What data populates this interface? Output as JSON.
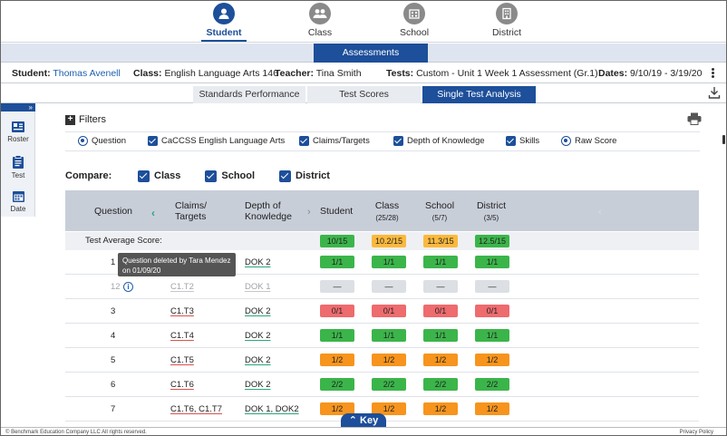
{
  "top_nav": {
    "items": [
      {
        "label": "Student",
        "icon": "person-icon",
        "active": true
      },
      {
        "label": "Class",
        "icon": "group-icon",
        "active": false
      },
      {
        "label": "School",
        "icon": "school-icon",
        "active": false
      },
      {
        "label": "District",
        "icon": "district-icon",
        "active": false
      }
    ]
  },
  "band": {
    "title": "Assessments"
  },
  "info": {
    "student_label": "Student:",
    "student_value": "Thomas Avenell",
    "class_label": "Class:",
    "class_value": "English Language Arts 146",
    "teacher_label": "Teacher:",
    "teacher_value": "Tina Smith",
    "tests_label": "Tests:",
    "tests_value": "Custom - Unit 1 Week 1 Assessment (Gr.1)",
    "dates_label": "Dates:",
    "dates_value": "9/10/19 - 3/19/20"
  },
  "subtabs": [
    {
      "label": "Standards Performance",
      "active": false
    },
    {
      "label": "Test Scores",
      "active": false
    },
    {
      "label": "Single Test Analysis",
      "active": true
    }
  ],
  "rail": {
    "expand": "»",
    "items": [
      {
        "label": "Roster",
        "icon": "roster-icon"
      },
      {
        "label": "Test",
        "icon": "clipboard-icon"
      },
      {
        "label": "Date",
        "icon": "calendar-icon"
      }
    ]
  },
  "filters": {
    "title": "Filters",
    "options": [
      {
        "label": "Question",
        "kind": "radio"
      },
      {
        "label": "CaCCSS English Language Arts",
        "kind": "checkbox"
      },
      {
        "label": "Claims/Targets",
        "kind": "checkbox"
      },
      {
        "label": "Depth of Knowledge",
        "kind": "checkbox"
      },
      {
        "label": "Skills",
        "kind": "checkbox"
      },
      {
        "label": "Raw Score",
        "kind": "radio"
      }
    ]
  },
  "compare": {
    "label": "Compare:",
    "options": [
      "Class",
      "School",
      "District"
    ]
  },
  "table": {
    "headers": {
      "question": "Question",
      "claims_1": "Claims/",
      "claims_2": "Targets",
      "dok_1": "Depth of",
      "dok_2": "Knowledge",
      "student": "Student",
      "class": "Class",
      "class_sub": "(25/28)",
      "school": "School",
      "school_sub": "(5/7)",
      "district": "District",
      "district_sub": "(3/5)"
    },
    "average": {
      "label": "Test Average Score:",
      "student": "10/15",
      "class": "10.2/15",
      "school": "11.3/15",
      "district": "12.5/15",
      "colors": {
        "student": "#3bb54a",
        "class": "#fbb93c",
        "school": "#fbb93c",
        "district": "#3bb54a"
      }
    },
    "rows": [
      {
        "q": "1",
        "claims": "",
        "dok": "DOK 2",
        "student": "1/1",
        "class": "1/1",
        "school": "1/1",
        "district": "1/1",
        "color": "green"
      },
      {
        "q": "12",
        "claims": "C1.T2",
        "dok": "DOK 1",
        "student": "—",
        "class": "—",
        "school": "—",
        "district": "—",
        "color": "grey",
        "deleted": true
      },
      {
        "q": "3",
        "claims": "C1.T3",
        "dok": "DOK 2",
        "student": "0/1",
        "class": "0/1",
        "school": "0/1",
        "district": "0/1",
        "color": "red"
      },
      {
        "q": "4",
        "claims": "C1.T4",
        "dok": "DOK 2",
        "student": "1/1",
        "class": "1/1",
        "school": "1/1",
        "district": "1/1",
        "color": "green"
      },
      {
        "q": "5",
        "claims": "C1.T5",
        "dok": "DOK 2",
        "student": "1/2",
        "class": "1/2",
        "school": "1/2",
        "district": "1/2",
        "color": "orange"
      },
      {
        "q": "6",
        "claims": "C1.T6",
        "dok": "DOK 2",
        "student": "2/2",
        "class": "2/2",
        "school": "2/2",
        "district": "2/2",
        "color": "green"
      },
      {
        "q": "7",
        "claims": "C1.T6, C1.T7",
        "dok": "DOK 1, DOK2",
        "student": "1/2",
        "class": "1/2",
        "school": "1/2",
        "district": "1/2",
        "color": "orange"
      }
    ]
  },
  "tooltip": {
    "line1": "Question deleted by Tara Mendez",
    "line2": "on  01/09/20"
  },
  "key_button": {
    "label": "Key",
    "icon": "chevron-up-icon"
  },
  "footer": {
    "copyright": "© Benchmark Education Company LLC All rights reserved.",
    "privacy": "Privacy Policy"
  }
}
